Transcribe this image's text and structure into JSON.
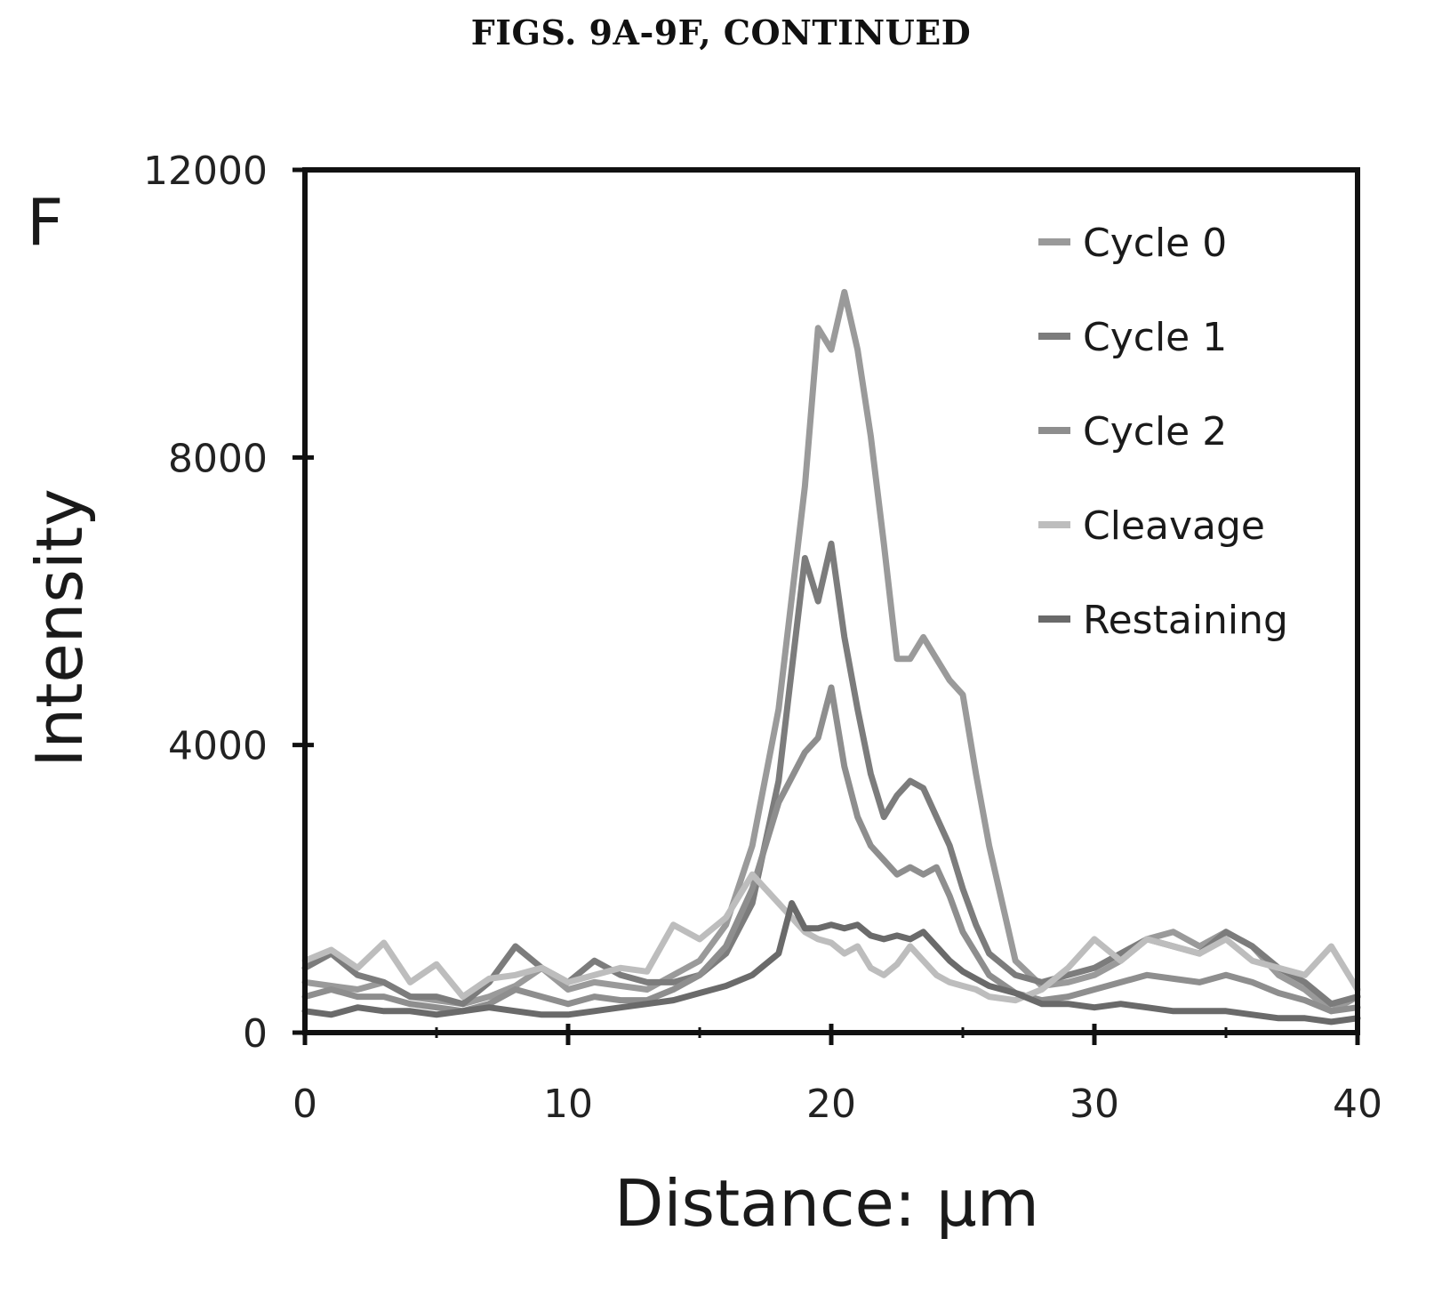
{
  "header": {
    "text": "FIGS. 9A-9F, CONTINUED"
  },
  "panel_label": "F",
  "colors": {
    "cycle0": "#9a9a9a",
    "cycle1": "#7c7c7c",
    "cycle2": "#8e8e8e",
    "cleavage": "#bdbdbd",
    "restaining": "#6a6a6a",
    "axis": "#111111"
  },
  "chart_data": {
    "type": "line",
    "title": "",
    "xlabel": "Distance: μm",
    "ylabel": "Intensity",
    "xlim": [
      0,
      40
    ],
    "ylim": [
      0,
      12000
    ],
    "xticks": [
      "0",
      "10",
      "20",
      "30",
      "40"
    ],
    "yticks": [
      "0",
      "4000",
      "8000",
      "12000"
    ],
    "grid": false,
    "legend_position": "top-right",
    "series": [
      {
        "name": "Cycle 0",
        "color_key": "cycle0",
        "x": [
          0,
          1,
          2,
          3,
          4,
          5,
          6,
          7,
          8,
          9,
          10,
          11,
          12,
          13,
          14,
          15,
          16,
          17,
          18,
          19,
          19.5,
          20,
          20.5,
          21,
          21.5,
          22,
          22.5,
          23,
          23.5,
          24,
          24.5,
          25,
          25.5,
          26,
          27,
          28,
          29,
          30,
          31,
          32,
          33,
          34,
          35,
          36,
          37,
          38,
          39,
          40
        ],
        "values": [
          700,
          650,
          600,
          700,
          500,
          450,
          400,
          500,
          650,
          900,
          600,
          700,
          650,
          600,
          800,
          1000,
          1500,
          2600,
          4500,
          7600,
          9800,
          9500,
          10300,
          9500,
          8300,
          6800,
          5200,
          5200,
          5500,
          5200,
          4900,
          4700,
          3600,
          2600,
          1000,
          650,
          700,
          800,
          1000,
          1300,
          1400,
          1200,
          1400,
          1200,
          800,
          600,
          300,
          500
        ]
      },
      {
        "name": "Cycle 1",
        "color_key": "cycle1",
        "x": [
          0,
          1,
          2,
          3,
          4,
          5,
          6,
          7,
          8,
          9,
          10,
          11,
          12,
          13,
          14,
          15,
          16,
          17,
          18,
          19,
          19.5,
          20,
          20.5,
          21,
          21.5,
          22,
          22.5,
          23,
          23.5,
          24,
          24.5,
          25,
          25.5,
          26,
          27,
          28,
          29,
          30,
          31,
          32,
          33,
          34,
          35,
          36,
          37,
          38,
          39,
          40
        ],
        "values": [
          900,
          1100,
          800,
          700,
          500,
          500,
          400,
          700,
          1200,
          900,
          700,
          1000,
          800,
          700,
          700,
          800,
          1100,
          1800,
          3500,
          6600,
          6000,
          6800,
          5500,
          4500,
          3600,
          3000,
          3300,
          3500,
          3400,
          3000,
          2600,
          2000,
          1500,
          1100,
          800,
          700,
          800,
          900,
          1100,
          1300,
          1200,
          1100,
          1400,
          1200,
          900,
          700,
          400,
          500
        ]
      },
      {
        "name": "Cycle 2",
        "color_key": "cycle2",
        "x": [
          0,
          1,
          2,
          3,
          4,
          5,
          6,
          7,
          8,
          9,
          10,
          11,
          12,
          13,
          14,
          15,
          16,
          17,
          18,
          19,
          19.5,
          20,
          20.5,
          21,
          21.5,
          22,
          22.5,
          23,
          23.5,
          24,
          24.5,
          25,
          25.5,
          26,
          27,
          28,
          29,
          30,
          31,
          32,
          33,
          34,
          35,
          36,
          37,
          38,
          39,
          40
        ],
        "values": [
          500,
          600,
          500,
          500,
          400,
          350,
          300,
          400,
          600,
          500,
          400,
          500,
          450,
          450,
          600,
          800,
          1200,
          2000,
          3200,
          3900,
          4100,
          4800,
          3700,
          3000,
          2600,
          2400,
          2200,
          2300,
          2200,
          2300,
          1900,
          1400,
          1100,
          800,
          550,
          450,
          500,
          600,
          700,
          800,
          750,
          700,
          800,
          700,
          550,
          450,
          300,
          350
        ]
      },
      {
        "name": "Cleavage",
        "color_key": "cleavage",
        "x": [
          0,
          1,
          2,
          3,
          4,
          5,
          6,
          7,
          8,
          9,
          10,
          11,
          12,
          13,
          14,
          15,
          16,
          17,
          18,
          19,
          19.5,
          20,
          20.5,
          21,
          21.5,
          22,
          22.5,
          23,
          23.5,
          24,
          24.5,
          25,
          25.5,
          26,
          27,
          28,
          29,
          30,
          31,
          32,
          33,
          34,
          35,
          36,
          37,
          38,
          39,
          40
        ],
        "values": [
          1000,
          1150,
          900,
          1250,
          700,
          950,
          500,
          750,
          800,
          900,
          700,
          800,
          900,
          850,
          1500,
          1300,
          1600,
          2200,
          1800,
          1400,
          1300,
          1250,
          1100,
          1200,
          900,
          800,
          950,
          1200,
          1000,
          800,
          700,
          650,
          600,
          500,
          450,
          600,
          900,
          1300,
          1000,
          1300,
          1200,
          1100,
          1300,
          1000,
          900,
          800,
          1200,
          600
        ]
      },
      {
        "name": "Restaining",
        "color_key": "restaining",
        "x": [
          0,
          1,
          2,
          3,
          4,
          5,
          6,
          7,
          8,
          9,
          10,
          11,
          12,
          13,
          14,
          15,
          16,
          17,
          18,
          18.5,
          19,
          19.5,
          20,
          20.5,
          21,
          21.5,
          22,
          22.5,
          23,
          23.5,
          24,
          24.5,
          25,
          25.5,
          26,
          27,
          28,
          29,
          30,
          31,
          32,
          33,
          34,
          35,
          36,
          37,
          38,
          39,
          40
        ],
        "values": [
          300,
          250,
          350,
          300,
          300,
          250,
          300,
          350,
          300,
          250,
          250,
          300,
          350,
          400,
          450,
          550,
          650,
          800,
          1100,
          1800,
          1450,
          1450,
          1500,
          1450,
          1500,
          1350,
          1300,
          1350,
          1300,
          1400,
          1200,
          1000,
          850,
          750,
          650,
          550,
          400,
          400,
          350,
          400,
          350,
          300,
          300,
          300,
          250,
          200,
          200,
          150,
          200
        ]
      }
    ]
  }
}
